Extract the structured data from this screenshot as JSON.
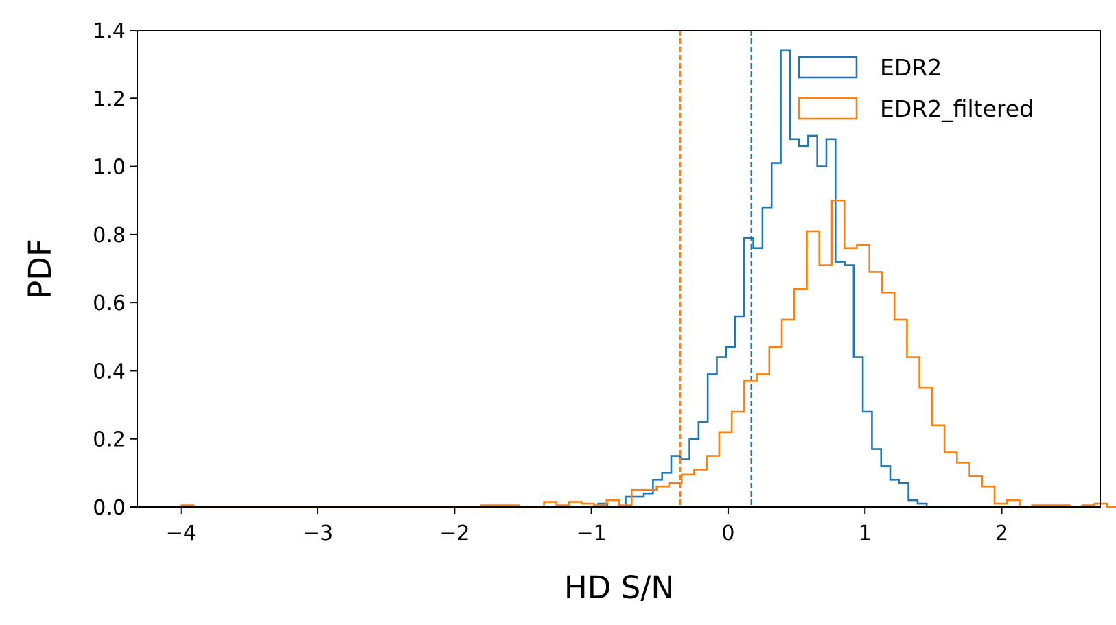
{
  "chart_data": {
    "type": "histogram",
    "xlabel": "HD S/N",
    "ylabel": "PDF",
    "xlim": [
      -4.32,
      2.72
    ],
    "ylim": [
      0.0,
      1.4
    ],
    "xticks": [
      -4,
      -3,
      -2,
      -1,
      0,
      1,
      2
    ],
    "xtick_labels": [
      "−4",
      "−3",
      "−2",
      "−1",
      "0",
      "1",
      "2"
    ],
    "yticks": [
      0.0,
      0.2,
      0.4,
      0.6,
      0.8,
      1.0,
      1.2,
      1.4
    ],
    "ytick_labels": [
      "0.0",
      "0.2",
      "0.4",
      "0.6",
      "0.8",
      "1.0",
      "1.2",
      "1.4"
    ],
    "legend_position": "top-right",
    "grid": false,
    "series": [
      {
        "name": "EDR2",
        "color": "#1f77b4",
        "bin_start": -1.35,
        "bin_width": 0.0667,
        "values": [
          0.0,
          0.0,
          0.0,
          0.0,
          0.0,
          0.0,
          0.01,
          0.0,
          0.0,
          0.03,
          0.03,
          0.04,
          0.08,
          0.1,
          0.15,
          0.14,
          0.2,
          0.25,
          0.39,
          0.44,
          0.47,
          0.56,
          0.79,
          0.76,
          0.88,
          1.01,
          1.34,
          1.08,
          1.06,
          1.09,
          1.0,
          1.08,
          0.72,
          0.71,
          0.44,
          0.28,
          0.17,
          0.12,
          0.08,
          0.07,
          0.02,
          0.01,
          0.0,
          0.0,
          0.0,
          0.0
        ],
        "median_line": 0.17
      },
      {
        "name": "EDR2_filtered",
        "color": "#ff7f0e",
        "bin_start": -4.0,
        "bin_width": 0.0915,
        "values": [
          0.005,
          0.0,
          0.0,
          0.0,
          0.0,
          0.0,
          0.0,
          0.0,
          0.0,
          0.0,
          0.0,
          0.0,
          0.0,
          0.0,
          0.0,
          0.0,
          0.0,
          0.0,
          0.0,
          0.0,
          0.0,
          0.0,
          0.0,
          0.0,
          0.005,
          0.005,
          0.005,
          0.0,
          0.0,
          0.015,
          0.005,
          0.015,
          0.01,
          0.005,
          0.02,
          0.005,
          0.05,
          0.05,
          0.06,
          0.07,
          0.095,
          0.11,
          0.15,
          0.22,
          0.28,
          0.37,
          0.39,
          0.47,
          0.55,
          0.64,
          0.81,
          0.71,
          0.9,
          0.76,
          0.77,
          0.69,
          0.63,
          0.55,
          0.44,
          0.35,
          0.24,
          0.16,
          0.13,
          0.09,
          0.06,
          0.01,
          0.02,
          0.0,
          0.005,
          0.005,
          0.005,
          0.0,
          0.005,
          0.01,
          0.0,
          0.005,
          0.005,
          0.0,
          0.0,
          0.0,
          0.0,
          0.0,
          0.0,
          0.0,
          0.0,
          0.0,
          0.0,
          0.0,
          0.005,
          0.005
        ],
        "median_line": -0.35
      }
    ]
  }
}
